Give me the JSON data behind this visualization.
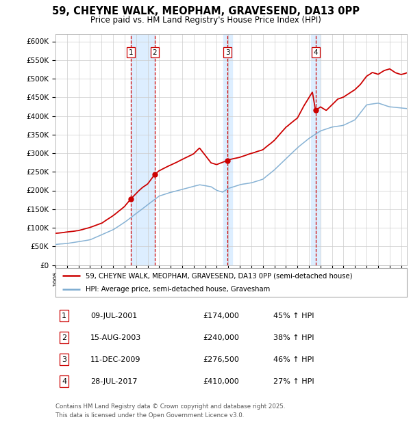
{
  "title": "59, CHEYNE WALK, MEOPHAM, GRAVESEND, DA13 0PP",
  "subtitle": "Price paid vs. HM Land Registry's House Price Index (HPI)",
  "ylabel_ticks": [
    "£0",
    "£50K",
    "£100K",
    "£150K",
    "£200K",
    "£250K",
    "£300K",
    "£350K",
    "£400K",
    "£450K",
    "£500K",
    "£550K",
    "£600K"
  ],
  "ylim": [
    0,
    620000
  ],
  "xlim_start": 1995.0,
  "xlim_end": 2025.5,
  "transactions": [
    {
      "label": "1",
      "date": "09-JUL-2001",
      "year": 2001.52,
      "price": 174000,
      "pct": "45% ↑ HPI"
    },
    {
      "label": "2",
      "date": "15-AUG-2003",
      "year": 2003.62,
      "price": 240000,
      "pct": "38% ↑ HPI"
    },
    {
      "label": "3",
      "date": "11-DEC-2009",
      "year": 2009.94,
      "price": 276500,
      "pct": "46% ↑ HPI"
    },
    {
      "label": "4",
      "date": "28-JUL-2017",
      "year": 2017.57,
      "price": 410000,
      "pct": "27% ↑ HPI"
    }
  ],
  "legend_line1": "59, CHEYNE WALK, MEOPHAM, GRAVESEND, DA13 0PP (semi-detached house)",
  "legend_line2": "HPI: Average price, semi-detached house, Gravesham",
  "footer1": "Contains HM Land Registry data © Crown copyright and database right 2025.",
  "footer2": "This data is licensed under the Open Government Licence v3.0.",
  "red_color": "#cc0000",
  "blue_color": "#7aaad0",
  "shade_color": "#ddeeff",
  "bg_color": "#ffffff",
  "grid_color": "#cccccc"
}
